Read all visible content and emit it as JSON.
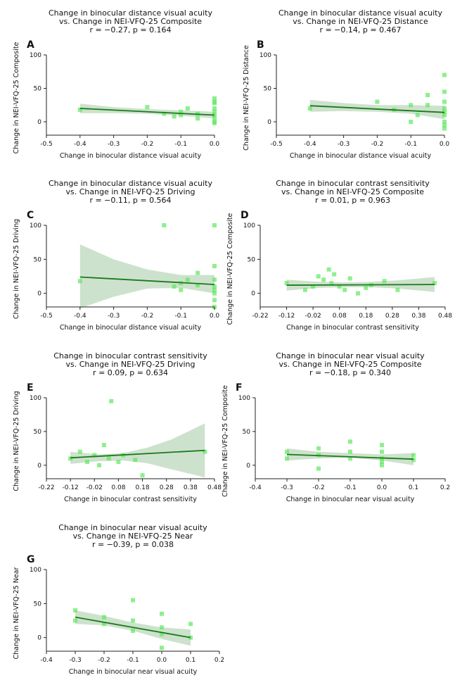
{
  "colors": {
    "point": "#5ee85e",
    "line": "#1a7a1a",
    "band": "#bcd8bc"
  },
  "chart_data": [
    {
      "id": "A",
      "type": "scatter",
      "title": "Change in binocular distance visual acuity",
      "subtitle": "vs. Change in NEI-VFQ-25 Composite",
      "stats": "r = −0.27,  p = 0.164",
      "xlabel": "Change in binocular distance visual acuity",
      "ylabel": "Change in NEI-VFQ-25 Composite",
      "xlim": [
        -0.5,
        0.0
      ],
      "ylim": [
        -20,
        100
      ],
      "xticks": [
        "-0.5",
        "-0.4",
        "-0.3",
        "-0.2",
        "-0.1",
        "0.0"
      ],
      "yticks": [
        "0",
        "50",
        "100"
      ],
      "xtick_values": [
        -0.5,
        -0.4,
        -0.3,
        -0.2,
        -0.1,
        0.0
      ],
      "ytick_values": [
        0,
        50,
        100
      ],
      "points": {
        "x": [
          -0.4,
          -0.2,
          -0.15,
          -0.12,
          -0.1,
          -0.1,
          -0.08,
          -0.05,
          -0.05,
          0,
          0,
          0,
          0,
          0,
          0,
          0,
          0,
          0
        ],
        "y": [
          18,
          22,
          12,
          8,
          15,
          10,
          20,
          5,
          12,
          35,
          28,
          20,
          15,
          10,
          5,
          0,
          -2,
          30
        ]
      },
      "regression": {
        "x": [
          -0.4,
          0.0
        ],
        "y": [
          20,
          10
        ]
      },
      "ci_band": {
        "x": [
          -0.4,
          -0.3,
          -0.2,
          -0.1,
          0.0
        ],
        "upper": [
          27,
          22,
          19,
          17,
          15
        ],
        "lower": [
          13,
          13,
          12,
          9,
          5
        ]
      }
    },
    {
      "id": "B",
      "type": "scatter",
      "title": "Change in binocular distance visual acuity",
      "subtitle": "vs. Change in NEI-VFQ-25 Distance",
      "stats": "r = −0.14,  p = 0.467",
      "xlabel": "Change in binocular distance visual acuity",
      "ylabel": "Change in NEI-VFQ-25 Distance",
      "xlim": [
        -0.5,
        0.0
      ],
      "ylim": [
        -20,
        100
      ],
      "xticks": [
        "-0.5",
        "-0.4",
        "-0.3",
        "-0.2",
        "-0.1",
        "0.0"
      ],
      "yticks": [
        "0",
        "50",
        "100"
      ],
      "xtick_values": [
        -0.5,
        -0.4,
        -0.3,
        -0.2,
        -0.1,
        0.0
      ],
      "ytick_values": [
        0,
        50,
        100
      ],
      "points": {
        "x": [
          -0.4,
          -0.2,
          -0.15,
          -0.1,
          -0.1,
          -0.08,
          -0.05,
          -0.05,
          0,
          0,
          0,
          0,
          0,
          0,
          0,
          0,
          0
        ],
        "y": [
          20,
          30,
          18,
          25,
          0,
          10,
          40,
          25,
          70,
          45,
          30,
          20,
          10,
          0,
          -5,
          -10,
          15
        ]
      },
      "regression": {
        "x": [
          -0.4,
          0.0
        ],
        "y": [
          24,
          14
        ]
      },
      "ci_band": {
        "x": [
          -0.4,
          -0.3,
          -0.2,
          -0.1,
          0.0
        ],
        "upper": [
          33,
          28,
          25,
          25,
          24
        ],
        "lower": [
          15,
          16,
          15,
          12,
          4
        ]
      }
    },
    {
      "id": "C",
      "type": "scatter",
      "title": "Change in binocular distance visual acuity",
      "subtitle": "vs. Change in NEI-VFQ-25 Driving",
      "stats": "r = −0.11,  p = 0.564",
      "xlabel": "Change in binocular distance visual acuity",
      "ylabel": "Change in NEI-VFQ-25 Driving",
      "xlim": [
        -0.5,
        0.0
      ],
      "ylim": [
        -20,
        100
      ],
      "xticks": [
        "-0.5",
        "-0.4",
        "-0.3",
        "-0.2",
        "-0.1",
        "0.0"
      ],
      "yticks": [
        "0",
        "50",
        "100"
      ],
      "xtick_values": [
        -0.5,
        -0.4,
        -0.3,
        -0.2,
        -0.1,
        0.0
      ],
      "ytick_values": [
        0,
        50,
        100
      ],
      "points": {
        "x": [
          -0.4,
          -0.15,
          -0.12,
          -0.1,
          -0.1,
          -0.08,
          -0.05,
          -0.05,
          0,
          0,
          0,
          0,
          0,
          0,
          0,
          0
        ],
        "y": [
          18,
          100,
          10,
          15,
          5,
          20,
          30,
          12,
          100,
          40,
          20,
          10,
          0,
          -10,
          -20,
          5
        ]
      },
      "regression": {
        "x": [
          -0.4,
          0.0
        ],
        "y": [
          24,
          13
        ]
      },
      "ci_band": {
        "x": [
          -0.4,
          -0.3,
          -0.2,
          -0.1,
          0.0
        ],
        "upper": [
          72,
          50,
          35,
          27,
          27
        ],
        "lower": [
          -22,
          -5,
          7,
          8,
          0
        ]
      }
    },
    {
      "id": "D",
      "type": "scatter",
      "title": "Change in binocular contrast sensitivity",
      "subtitle": "vs. Change in NEI-VFQ-25 Composite",
      "stats": "r = 0.01,  p = 0.963",
      "xlabel": "Change in binocular contrast sensitivity",
      "ylabel": "Change in NEI-VFQ-25 Composite",
      "xlim": [
        -0.22,
        0.48
      ],
      "ylim": [
        -20,
        100
      ],
      "xticks": [
        "-0.22",
        "-0.12",
        "-0.02",
        "0.08",
        "0.18",
        "0.28",
        "0.38",
        "0.48"
      ],
      "yticks": [
        "0",
        "50",
        "100"
      ],
      "xtick_values": [
        -0.22,
        -0.12,
        -0.02,
        0.08,
        0.18,
        0.28,
        0.38,
        0.48
      ],
      "ytick_values": [
        0,
        50,
        100
      ],
      "points": {
        "x": [
          -0.12,
          -0.05,
          -0.02,
          0.0,
          0.02,
          0.04,
          0.05,
          0.06,
          0.08,
          0.1,
          0.12,
          0.15,
          0.18,
          0.2,
          0.25,
          0.3,
          0.44
        ],
        "y": [
          15,
          5,
          10,
          25,
          20,
          35,
          15,
          28,
          10,
          5,
          22,
          0,
          8,
          12,
          18,
          5,
          15
        ]
      },
      "regression": {
        "x": [
          -0.12,
          0.44
        ],
        "y": [
          12,
          13
        ]
      },
      "ci_band": {
        "x": [
          -0.12,
          0.0,
          0.1,
          0.2,
          0.3,
          0.44
        ],
        "upper": [
          20,
          17,
          16,
          17,
          19,
          24
        ],
        "lower": [
          4,
          8,
          9,
          9,
          7,
          2
        ]
      }
    },
    {
      "id": "E",
      "type": "scatter",
      "title": "Change in binocular contrast sensitivity",
      "subtitle": "vs. Change in NEI-VFQ-25 Driving",
      "stats": "r = 0.09,  p = 0.634",
      "xlabel": "Change in binocular contrast sensitivity",
      "ylabel": "Change in NEI-VFQ-25 Driving",
      "xlim": [
        -0.22,
        0.48
      ],
      "ylim": [
        -20,
        100
      ],
      "xticks": [
        "-0.22",
        "-0.12",
        "-0.02",
        "0.08",
        "0.18",
        "0.28",
        "0.38",
        "0.48"
      ],
      "yticks": [
        "0",
        "50",
        "100"
      ],
      "xtick_values": [
        -0.22,
        -0.12,
        -0.02,
        0.08,
        0.18,
        0.28,
        0.38,
        0.48
      ],
      "ytick_values": [
        0,
        50,
        100
      ],
      "points": {
        "x": [
          -0.12,
          -0.08,
          -0.05,
          -0.02,
          0.0,
          0.02,
          0.04,
          0.05,
          0.08,
          0.1,
          0.15,
          0.18,
          0.44
        ],
        "y": [
          10,
          20,
          5,
          15,
          0,
          30,
          10,
          95,
          5,
          15,
          8,
          -15,
          20
        ]
      },
      "regression": {
        "x": [
          -0.12,
          0.44
        ],
        "y": [
          11,
          22
        ]
      },
      "ci_band": {
        "x": [
          -0.12,
          0.0,
          0.1,
          0.2,
          0.3,
          0.44
        ],
        "upper": [
          20,
          16,
          18,
          26,
          38,
          62
        ],
        "lower": [
          2,
          6,
          7,
          3,
          -6,
          -18
        ]
      }
    },
    {
      "id": "F",
      "type": "scatter",
      "title": "Change in binocular near visual acuity",
      "subtitle": "vs. Change in NEI-VFQ-25 Composite",
      "stats": "r = −0.18,  p = 0.340",
      "xlabel": "Change in binocular near visual acuity",
      "ylabel": "Change in NEI-VFQ-25 Composite",
      "xlim": [
        -0.4,
        0.2
      ],
      "ylim": [
        -20,
        100
      ],
      "xticks": [
        "-0.4",
        "-0.3",
        "-0.2",
        "-0.1",
        "0.0",
        "0.1",
        "0.2"
      ],
      "yticks": [
        "0",
        "50",
        "100"
      ],
      "xtick_values": [
        -0.4,
        -0.3,
        -0.2,
        -0.1,
        0.0,
        0.1,
        0.2
      ],
      "ytick_values": [
        0,
        50,
        100
      ],
      "points": {
        "x": [
          -0.3,
          -0.3,
          -0.2,
          -0.2,
          -0.2,
          -0.1,
          -0.1,
          -0.1,
          0,
          0,
          0,
          0,
          0,
          0.1,
          0.1
        ],
        "y": [
          20,
          10,
          15,
          -5,
          25,
          35,
          10,
          20,
          30,
          20,
          10,
          5,
          0,
          15,
          8
        ]
      },
      "regression": {
        "x": [
          -0.3,
          0.1
        ],
        "y": [
          16,
          9
        ]
      },
      "ci_band": {
        "x": [
          -0.3,
          -0.2,
          -0.1,
          0.0,
          0.1
        ],
        "upper": [
          25,
          20,
          18,
          16,
          18
        ],
        "lower": [
          7,
          10,
          11,
          7,
          0
        ]
      }
    },
    {
      "id": "G",
      "type": "scatter",
      "title": "Change in binocular near visual acuity",
      "subtitle": "vs. Change in NEI-VFQ-25 Near",
      "stats": "r = −0.39,  p = 0.038",
      "xlabel": "Change in binocular near visual acuity",
      "ylabel": "Change in NEI-VFQ-25 Near",
      "xlim": [
        -0.4,
        0.2
      ],
      "ylim": [
        -20,
        100
      ],
      "xticks": [
        "-0.4",
        "-0.3",
        "-0.2",
        "-0.1",
        "0.0",
        "0.1",
        "0.2"
      ],
      "yticks": [
        "0",
        "50",
        "100"
      ],
      "xtick_values": [
        -0.4,
        -0.3,
        -0.2,
        -0.1,
        0.0,
        0.1,
        0.2
      ],
      "ytick_values": [
        0,
        50,
        100
      ],
      "points": {
        "x": [
          -0.3,
          -0.3,
          -0.2,
          -0.2,
          -0.1,
          -0.1,
          -0.1,
          0,
          0,
          0,
          0,
          0.1,
          0.1
        ],
        "y": [
          40,
          25,
          30,
          20,
          55,
          25,
          10,
          35,
          15,
          5,
          -15,
          20,
          0
        ]
      },
      "regression": {
        "x": [
          -0.3,
          0.1
        ],
        "y": [
          30,
          0
        ]
      },
      "ci_band": {
        "x": [
          -0.3,
          -0.2,
          -0.1,
          0.0,
          0.1
        ],
        "upper": [
          40,
          32,
          22,
          15,
          12
        ],
        "lower": [
          20,
          18,
          10,
          -2,
          -12
        ]
      }
    }
  ]
}
